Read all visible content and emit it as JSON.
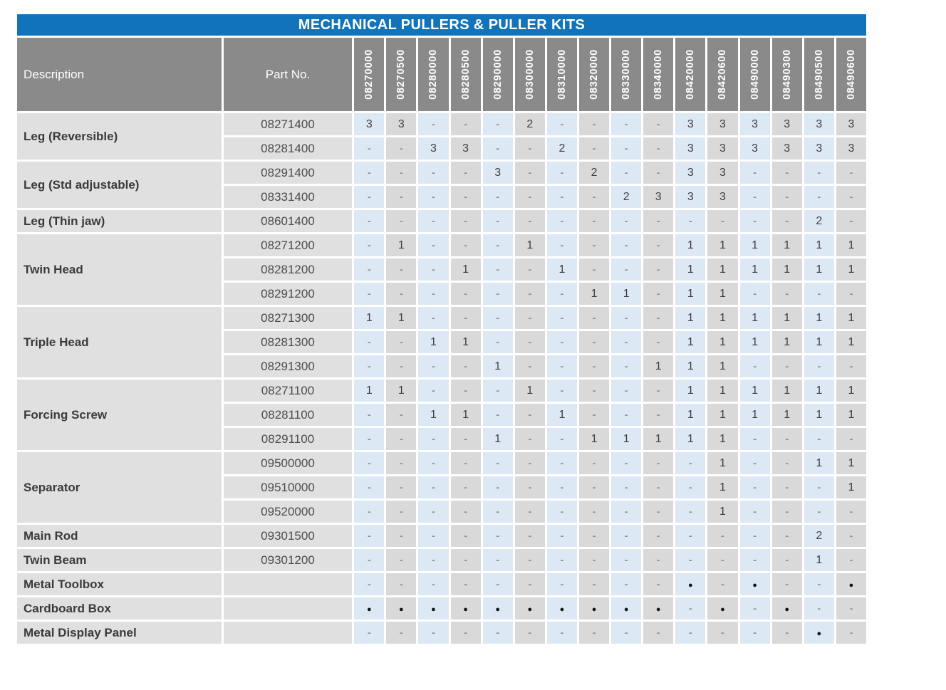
{
  "title": "MECHANICAL PULLERS & PULLER KITS",
  "table": {
    "description_header": "Description",
    "part_no_header": "Part No.",
    "columns": [
      "08270000",
      "08270500",
      "08280000",
      "08280500",
      "08290000",
      "08300000",
      "08310000",
      "08320000",
      "08330000",
      "08340000",
      "08420000",
      "08420600",
      "08490000",
      "08490300",
      "08490500",
      "08490600"
    ],
    "groups": [
      {
        "description": "Leg (Reversible)",
        "rows": [
          {
            "part_no": "08271400",
            "values": [
              "3",
              "3",
              "-",
              "-",
              "-",
              "2",
              "-",
              "-",
              "-",
              "-",
              "3",
              "3",
              "3",
              "3",
              "3",
              "3"
            ]
          },
          {
            "part_no": "08281400",
            "values": [
              "-",
              "-",
              "3",
              "3",
              "-",
              "-",
              "2",
              "-",
              "-",
              "-",
              "3",
              "3",
              "3",
              "3",
              "3",
              "3"
            ]
          }
        ]
      },
      {
        "description": "Leg (Std adjustable)",
        "rows": [
          {
            "part_no": "08291400",
            "values": [
              "-",
              "-",
              "-",
              "-",
              "3",
              "-",
              "-",
              "2",
              "-",
              "-",
              "3",
              "3",
              "-",
              "-",
              "-",
              "-"
            ]
          },
          {
            "part_no": "08331400",
            "values": [
              "-",
              "-",
              "-",
              "-",
              "-",
              "-",
              "-",
              "-",
              "2",
              "3",
              "3",
              "3",
              "-",
              "-",
              "-",
              "-"
            ]
          }
        ]
      },
      {
        "description": "Leg (Thin jaw)",
        "rows": [
          {
            "part_no": "08601400",
            "values": [
              "-",
              "-",
              "-",
              "-",
              "-",
              "-",
              "-",
              "-",
              "-",
              "-",
              "-",
              "-",
              "-",
              "-",
              "2",
              "-"
            ]
          }
        ]
      },
      {
        "description": "Twin Head",
        "rows": [
          {
            "part_no": "08271200",
            "values": [
              "-",
              "1",
              "-",
              "-",
              "-",
              "1",
              "-",
              "-",
              "-",
              "-",
              "1",
              "1",
              "1",
              "1",
              "1",
              "1"
            ]
          },
          {
            "part_no": "08281200",
            "values": [
              "-",
              "-",
              "-",
              "1",
              "-",
              "-",
              "1",
              "-",
              "-",
              "-",
              "1",
              "1",
              "1",
              "1",
              "1",
              "1"
            ]
          },
          {
            "part_no": "08291200",
            "values": [
              "-",
              "-",
              "-",
              "-",
              "-",
              "-",
              "-",
              "1",
              "1",
              "-",
              "1",
              "1",
              "-",
              "-",
              "-",
              "-"
            ]
          }
        ]
      },
      {
        "description": "Triple Head",
        "rows": [
          {
            "part_no": "08271300",
            "values": [
              "1",
              "1",
              "-",
              "-",
              "-",
              "-",
              "-",
              "-",
              "-",
              "-",
              "1",
              "1",
              "1",
              "1",
              "1",
              "1"
            ]
          },
          {
            "part_no": "08281300",
            "values": [
              "-",
              "-",
              "1",
              "1",
              "-",
              "-",
              "-",
              "-",
              "-",
              "-",
              "1",
              "1",
              "1",
              "1",
              "1",
              "1"
            ]
          },
          {
            "part_no": "08291300",
            "values": [
              "-",
              "-",
              "-",
              "-",
              "1",
              "-",
              "-",
              "-",
              "-",
              "1",
              "1",
              "1",
              "-",
              "-",
              "-",
              "-"
            ]
          }
        ]
      },
      {
        "description": "Forcing Screw",
        "rows": [
          {
            "part_no": "08271100",
            "values": [
              "1",
              "1",
              "-",
              "-",
              "-",
              "1",
              "-",
              "-",
              "-",
              "-",
              "1",
              "1",
              "1",
              "1",
              "1",
              "1"
            ]
          },
          {
            "part_no": "08281100",
            "values": [
              "-",
              "-",
              "1",
              "1",
              "-",
              "-",
              "1",
              "-",
              "-",
              "-",
              "1",
              "1",
              "1",
              "1",
              "1",
              "1"
            ]
          },
          {
            "part_no": "08291100",
            "values": [
              "-",
              "-",
              "-",
              "-",
              "1",
              "-",
              "-",
              "1",
              "1",
              "1",
              "1",
              "1",
              "-",
              "-",
              "-",
              "-"
            ]
          }
        ]
      },
      {
        "description": "Separator",
        "rows": [
          {
            "part_no": "09500000",
            "values": [
              "-",
              "-",
              "-",
              "-",
              "-",
              "-",
              "-",
              "-",
              "-",
              "-",
              "-",
              "1",
              "-",
              "-",
              "1",
              "1"
            ]
          },
          {
            "part_no": "09510000",
            "values": [
              "-",
              "-",
              "-",
              "-",
              "-",
              "-",
              "-",
              "-",
              "-",
              "-",
              "-",
              "1",
              "-",
              "-",
              "-",
              "1"
            ]
          },
          {
            "part_no": "09520000",
            "values": [
              "-",
              "-",
              "-",
              "-",
              "-",
              "-",
              "-",
              "-",
              "-",
              "-",
              "-",
              "1",
              "-",
              "-",
              "-",
              "-"
            ]
          }
        ]
      },
      {
        "description": "Main Rod",
        "rows": [
          {
            "part_no": "09301500",
            "values": [
              "-",
              "-",
              "-",
              "-",
              "-",
              "-",
              "-",
              "-",
              "-",
              "-",
              "-",
              "-",
              "-",
              "-",
              "2",
              "-"
            ]
          }
        ]
      },
      {
        "description": "Twin Beam",
        "rows": [
          {
            "part_no": "09301200",
            "values": [
              "-",
              "-",
              "-",
              "-",
              "-",
              "-",
              "-",
              "-",
              "-",
              "-",
              "-",
              "-",
              "-",
              "-",
              "1",
              "-"
            ]
          }
        ]
      },
      {
        "description": "Metal Toolbox",
        "rows": [
          {
            "part_no": "",
            "values": [
              "-",
              "-",
              "-",
              "-",
              "-",
              "-",
              "-",
              "-",
              "-",
              "-",
              "●",
              "-",
              "●",
              "-",
              "-",
              "●"
            ]
          }
        ]
      },
      {
        "description": "Cardboard Box",
        "rows": [
          {
            "part_no": "",
            "values": [
              "●",
              "●",
              "●",
              "●",
              "●",
              "●",
              "●",
              "●",
              "●",
              "●",
              "-",
              "●",
              "-",
              "●",
              "-",
              "-"
            ]
          }
        ]
      },
      {
        "description": "Metal Display Panel",
        "rows": [
          {
            "part_no": "",
            "values": [
              "-",
              "-",
              "-",
              "-",
              "-",
              "-",
              "-",
              "-",
              "-",
              "-",
              "-",
              "-",
              "-",
              "-",
              "●",
              "-"
            ]
          }
        ]
      }
    ]
  },
  "colors": {
    "title_bar_blue": "#1173b9",
    "header_gray": "#8a8a8a",
    "label_cell_gray": "#e0e0e0",
    "data_column_blue": "#dce8f4",
    "data_column_gray": "#d9d9d9",
    "text_dark": "#3f3f3f",
    "dash_gray": "#8c8c8c"
  }
}
